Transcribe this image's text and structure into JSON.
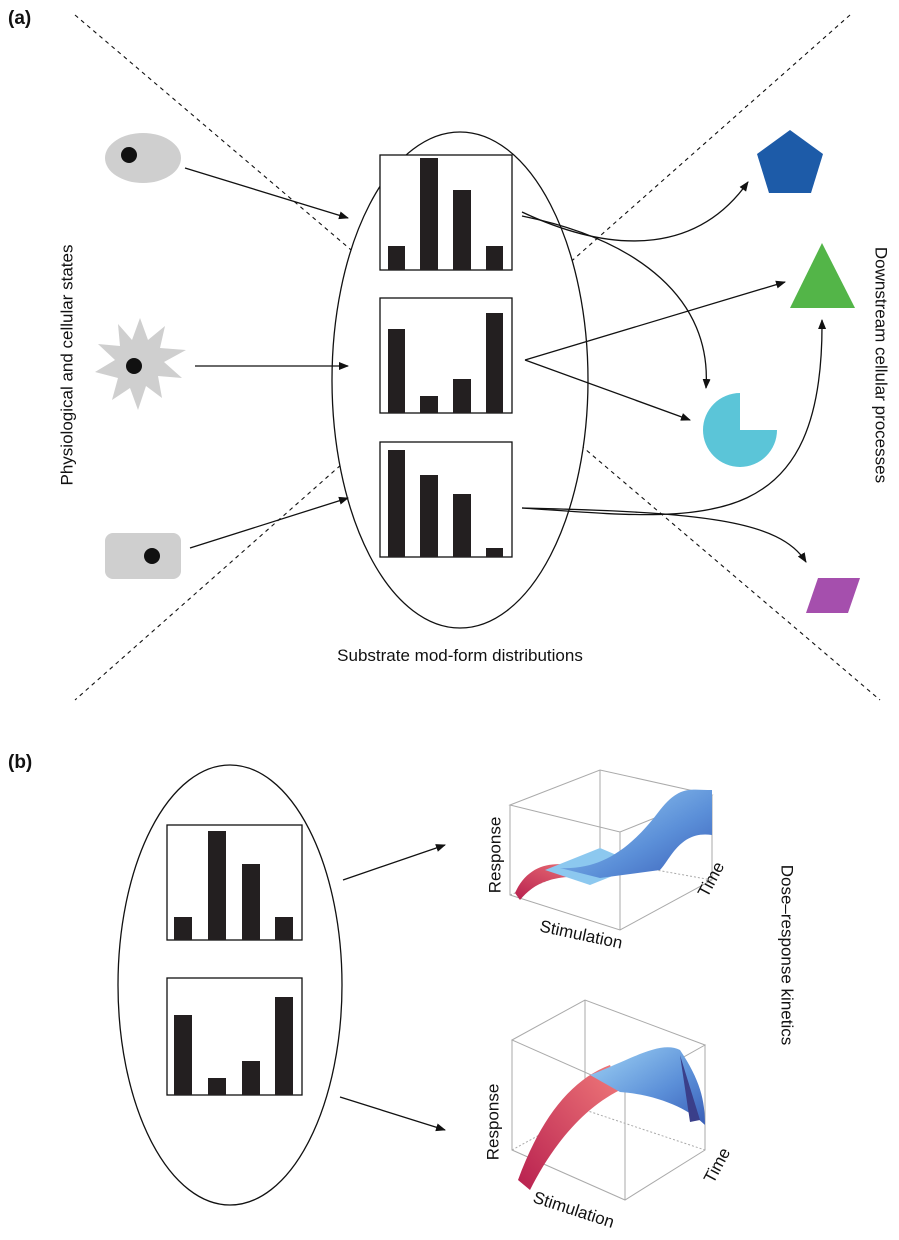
{
  "panel_a": {
    "label": "(a)",
    "left_label": "Physiological and cellular states",
    "right_label": "Downstream cellular processes",
    "center_label": "Substrate mod-form distributions"
  },
  "panel_b": {
    "label": "(b)",
    "side_label": "Dose–response kinetics",
    "plots": [
      {
        "response_label": "Response",
        "stimulation_label": "Stimulation",
        "time_label": "Time"
      },
      {
        "response_label": "Response",
        "stimulation_label": "Stimulation",
        "time_label": "Time"
      }
    ]
  }
}
